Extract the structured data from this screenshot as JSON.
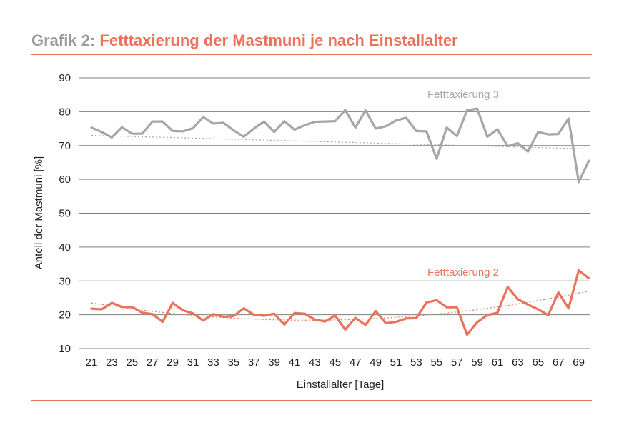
{
  "header": {
    "prefix": "Grafik 2:",
    "title": "Fetttaxierung der Mastmuni je nach Einstallalter"
  },
  "colors": {
    "accent": "#e8735a",
    "grey_series": "#a6a6a6",
    "grid": "#7f7f7f"
  },
  "chart_data": {
    "type": "line",
    "title": "Fetttaxierung der Mastmuni je nach Einstallalter",
    "xlabel": "Einstallalter [Tage]",
    "ylabel": "Anteil der Mastmuni [%]",
    "ylim": [
      10,
      90
    ],
    "yticks": [
      10,
      20,
      30,
      40,
      50,
      60,
      70,
      80,
      90
    ],
    "x": [
      21,
      22,
      23,
      24,
      25,
      26,
      27,
      28,
      29,
      30,
      31,
      32,
      33,
      34,
      35,
      36,
      37,
      38,
      39,
      40,
      41,
      42,
      43,
      44,
      45,
      46,
      47,
      48,
      49,
      50,
      51,
      52,
      53,
      54,
      55,
      56,
      57,
      58,
      59,
      60,
      61,
      62,
      63,
      64,
      65,
      66,
      67,
      68,
      69,
      70
    ],
    "xticks": [
      21,
      23,
      25,
      27,
      29,
      31,
      33,
      35,
      37,
      39,
      41,
      43,
      45,
      47,
      49,
      51,
      53,
      55,
      57,
      59,
      61,
      63,
      65,
      67,
      69
    ],
    "series": [
      {
        "name": "Fetttaxierung 3",
        "color": "#a6a6a6",
        "values": [
          75.3,
          74.0,
          72.4,
          75.4,
          73.5,
          73.5,
          77.1,
          77.1,
          74.3,
          74.2,
          75.1,
          78.4,
          76.5,
          76.7,
          74.5,
          72.6,
          75.0,
          77.1,
          74.0,
          77.2,
          74.7,
          76.0,
          77.0,
          77.1,
          77.2,
          80.5,
          75.3,
          80.4,
          75.0,
          75.7,
          77.4,
          78.2,
          74.3,
          74.2,
          66.1,
          75.3,
          72.8,
          80.4,
          80.9,
          72.6,
          74.8,
          69.8,
          70.7,
          68.2,
          74.0,
          73.3,
          73.4,
          78.0,
          59.2,
          65.5
        ],
        "trend": [
          73.0,
          69.0
        ]
      },
      {
        "name": "Fetttaxierung 2",
        "color": "#e8735a",
        "values": [
          21.8,
          21.6,
          23.5,
          22.3,
          22.3,
          20.6,
          20.2,
          17.9,
          23.5,
          21.3,
          20.4,
          18.3,
          20.2,
          19.4,
          19.6,
          21.9,
          20.0,
          19.7,
          20.3,
          17.1,
          20.5,
          20.3,
          18.6,
          18.0,
          19.8,
          15.6,
          19.1,
          17.0,
          21.1,
          17.5,
          17.9,
          18.9,
          19.0,
          23.6,
          24.3,
          22.2,
          22.2,
          14.1,
          17.8,
          19.9,
          20.6,
          28.2,
          24.6,
          23.0,
          21.6,
          19.9,
          26.6,
          21.9,
          33.1,
          30.8
        ],
        "trend": [
          23.5,
          18.5,
          27.0
        ]
      }
    ]
  }
}
